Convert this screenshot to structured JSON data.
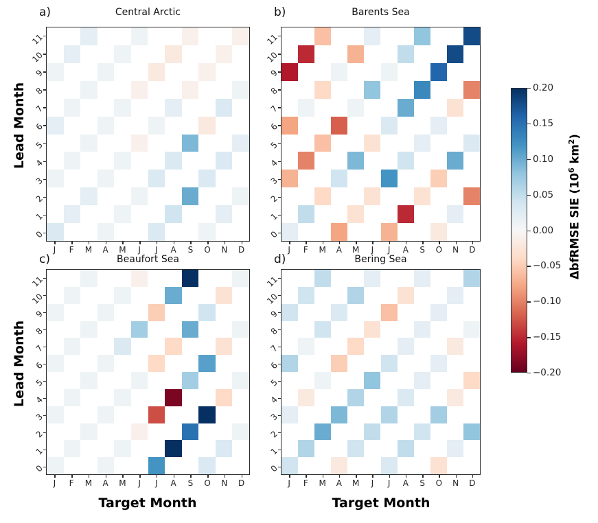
{
  "figure": {
    "xlabel": "Target Month",
    "ylabel": "Lead Month"
  },
  "colorbar": {
    "label_parts": [
      "ΔbfRMSE SIE (10",
      "6",
      " km",
      "2",
      ")"
    ],
    "tick_labels": [
      "0.20",
      "0.15",
      "0.10",
      "0.05",
      "0.00",
      "−0.05",
      "−0.10",
      "−0.15",
      "−0.20"
    ],
    "vmin": -0.2,
    "vmax": 0.2,
    "colormap": "RdBu"
  },
  "chart_data": [
    {
      "type": "heatmap",
      "panel_letter": "a)",
      "title": "Central Arctic",
      "xlabel": "Target Month",
      "ylabel": "Lead Month",
      "x_categories": [
        "J",
        "F",
        "M",
        "A",
        "M",
        "J",
        "J",
        "A",
        "S",
        "O",
        "N",
        "D"
      ],
      "y_categories": [
        "0",
        "1",
        "2",
        "3",
        "4",
        "5",
        "6",
        "7",
        "8",
        "9",
        "10",
        "11"
      ],
      "vmin": -0.2,
      "vmax": 0.2,
      "colormap": "RdBu",
      "values_by_lead": [
        [
          0.03,
          null,
          null,
          0.01,
          null,
          null,
          0.03,
          null,
          null,
          0.01,
          null,
          null
        ],
        [
          null,
          0.02,
          null,
          null,
          0.01,
          null,
          null,
          0.04,
          null,
          null,
          0.02,
          null
        ],
        [
          null,
          null,
          0.02,
          null,
          null,
          0.01,
          null,
          null,
          0.1,
          null,
          null,
          0.01
        ],
        [
          0.01,
          null,
          null,
          0.01,
          null,
          null,
          0.03,
          null,
          null,
          0.03,
          null,
          null
        ],
        [
          null,
          0.01,
          null,
          null,
          0.01,
          null,
          null,
          0.03,
          null,
          null,
          0.03,
          null
        ],
        [
          null,
          null,
          0.01,
          null,
          null,
          -0.01,
          null,
          null,
          0.09,
          null,
          null,
          0.02
        ],
        [
          0.02,
          null,
          null,
          0.01,
          null,
          null,
          0.01,
          null,
          null,
          -0.02,
          null,
          null
        ],
        [
          null,
          0.01,
          null,
          null,
          0.01,
          null,
          null,
          0.02,
          null,
          null,
          0.03,
          null
        ],
        [
          null,
          null,
          0.01,
          null,
          null,
          -0.01,
          null,
          null,
          -0.01,
          null,
          null,
          0.01
        ],
        [
          0.01,
          null,
          null,
          0.01,
          null,
          null,
          -0.02,
          null,
          null,
          -0.01,
          null,
          null
        ],
        [
          null,
          0.02,
          null,
          null,
          0.01,
          null,
          null,
          -0.02,
          null,
          null,
          -0.01,
          null
        ],
        [
          null,
          null,
          0.02,
          null,
          null,
          0.01,
          null,
          null,
          -0.01,
          null,
          null,
          -0.01
        ]
      ]
    },
    {
      "type": "heatmap",
      "panel_letter": "b)",
      "title": "Barents Sea",
      "xlabel": "Target Month",
      "ylabel": "Lead Month",
      "x_categories": [
        "J",
        "F",
        "M",
        "A",
        "M",
        "J",
        "J",
        "A",
        "S",
        "O",
        "N",
        "D"
      ],
      "y_categories": [
        "0",
        "1",
        "2",
        "3",
        "4",
        "5",
        "6",
        "7",
        "8",
        "9",
        "10",
        "11"
      ],
      "vmin": -0.2,
      "vmax": 0.2,
      "colormap": "RdBu",
      "values_by_lead": [
        [
          0.02,
          null,
          null,
          -0.08,
          null,
          null,
          -0.07,
          null,
          null,
          -0.02,
          null,
          null
        ],
        [
          null,
          0.05,
          null,
          null,
          -0.03,
          null,
          null,
          -0.15,
          null,
          null,
          0.02,
          null
        ],
        [
          null,
          null,
          -0.04,
          null,
          null,
          -0.03,
          null,
          null,
          -0.03,
          null,
          null,
          -0.1
        ],
        [
          -0.07,
          null,
          null,
          0.04,
          null,
          null,
          0.12,
          null,
          null,
          -0.05,
          null,
          null
        ],
        [
          null,
          -0.1,
          null,
          null,
          0.09,
          null,
          null,
          0.04,
          null,
          null,
          0.1,
          null
        ],
        [
          null,
          null,
          -0.06,
          null,
          null,
          -0.03,
          null,
          null,
          0.02,
          null,
          null,
          0.03
        ],
        [
          -0.08,
          null,
          null,
          -0.12,
          null,
          null,
          0.03,
          null,
          null,
          0.02,
          null,
          null
        ],
        [
          null,
          0.01,
          null,
          null,
          0.01,
          null,
          null,
          0.1,
          null,
          null,
          -0.03,
          null
        ],
        [
          null,
          null,
          -0.04,
          null,
          null,
          0.08,
          null,
          null,
          0.13,
          null,
          null,
          -0.1
        ],
        [
          -0.16,
          null,
          null,
          0.01,
          null,
          null,
          0.01,
          null,
          null,
          0.16,
          null,
          null
        ],
        [
          null,
          -0.15,
          null,
          null,
          -0.07,
          null,
          null,
          0.05,
          null,
          null,
          0.18,
          null
        ],
        [
          null,
          null,
          -0.06,
          null,
          null,
          0.02,
          null,
          null,
          0.08,
          null,
          null,
          0.18
        ]
      ]
    },
    {
      "type": "heatmap",
      "panel_letter": "c)",
      "title": "Beaufort Sea",
      "xlabel": "Target Month",
      "ylabel": "Lead Month",
      "x_categories": [
        "J",
        "F",
        "M",
        "A",
        "M",
        "J",
        "J",
        "A",
        "S",
        "O",
        "N",
        "D"
      ],
      "y_categories": [
        "0",
        "1",
        "2",
        "3",
        "4",
        "5",
        "6",
        "7",
        "8",
        "9",
        "10",
        "11"
      ],
      "vmin": -0.2,
      "vmax": 0.2,
      "colormap": "RdBu",
      "values_by_lead": [
        [
          0.01,
          null,
          null,
          0.01,
          null,
          null,
          0.12,
          null,
          null,
          0.03,
          null,
          null
        ],
        [
          null,
          0.01,
          null,
          null,
          0.01,
          null,
          null,
          0.2,
          null,
          null,
          0.03,
          null
        ],
        [
          null,
          null,
          0.01,
          null,
          null,
          -0.01,
          null,
          null,
          0.15,
          null,
          null,
          0.01
        ],
        [
          0.01,
          null,
          null,
          0.01,
          null,
          null,
          -0.13,
          null,
          null,
          0.2,
          null,
          null
        ],
        [
          null,
          0.01,
          null,
          null,
          0.01,
          null,
          null,
          -0.19,
          null,
          null,
          -0.04,
          null
        ],
        [
          null,
          null,
          0.01,
          null,
          null,
          0.01,
          null,
          null,
          0.07,
          null,
          null,
          0.01
        ],
        [
          0.01,
          null,
          null,
          0.01,
          null,
          null,
          -0.04,
          null,
          null,
          0.11,
          null,
          null
        ],
        [
          null,
          0.01,
          null,
          null,
          0.03,
          null,
          null,
          -0.04,
          null,
          null,
          -0.03,
          null
        ],
        [
          null,
          null,
          0.01,
          null,
          null,
          0.07,
          null,
          null,
          0.1,
          null,
          null,
          0.01
        ],
        [
          0.01,
          null,
          null,
          0.01,
          null,
          null,
          -0.05,
          null,
          null,
          0.04,
          null,
          null
        ],
        [
          null,
          0.01,
          null,
          null,
          0.01,
          null,
          null,
          0.1,
          null,
          null,
          -0.03,
          null
        ],
        [
          null,
          null,
          0.01,
          null,
          null,
          -0.01,
          null,
          null,
          0.2,
          null,
          null,
          0.01
        ]
      ]
    },
    {
      "type": "heatmap",
      "panel_letter": "d)",
      "title": "Bering Sea",
      "xlabel": "Target Month",
      "ylabel": "Lead Month",
      "x_categories": [
        "J",
        "F",
        "M",
        "A",
        "M",
        "J",
        "J",
        "A",
        "S",
        "O",
        "N",
        "D"
      ],
      "y_categories": [
        "0",
        "1",
        "2",
        "3",
        "4",
        "5",
        "6",
        "7",
        "8",
        "9",
        "10",
        "11"
      ],
      "vmin": -0.2,
      "vmax": 0.2,
      "colormap": "RdBu",
      "values_by_lead": [
        [
          0.04,
          null,
          null,
          -0.02,
          null,
          null,
          0.03,
          null,
          null,
          -0.03,
          null,
          null
        ],
        [
          null,
          0.06,
          null,
          null,
          0.04,
          null,
          null,
          0.05,
          null,
          null,
          0.02,
          null
        ],
        [
          null,
          null,
          0.1,
          null,
          null,
          0.05,
          null,
          null,
          0.04,
          null,
          null,
          0.08
        ],
        [
          0.02,
          null,
          null,
          0.09,
          null,
          null,
          0.06,
          null,
          null,
          0.07,
          null,
          null
        ],
        [
          null,
          -0.02,
          null,
          null,
          0.06,
          null,
          null,
          0.03,
          null,
          null,
          -0.02,
          null
        ],
        [
          null,
          null,
          0.01,
          null,
          null,
          0.08,
          null,
          null,
          0.02,
          null,
          null,
          -0.04
        ],
        [
          0.06,
          null,
          null,
          -0.05,
          null,
          null,
          0.04,
          null,
          null,
          0.02,
          null,
          null
        ],
        [
          null,
          0.01,
          null,
          null,
          -0.04,
          null,
          null,
          0.02,
          null,
          null,
          -0.02,
          null
        ],
        [
          null,
          null,
          0.04,
          null,
          null,
          -0.03,
          null,
          null,
          0.02,
          null,
          null,
          0.01
        ],
        [
          0.04,
          null,
          null,
          0.03,
          null,
          null,
          -0.06,
          null,
          null,
          0.02,
          null,
          null
        ],
        [
          null,
          0.04,
          null,
          null,
          0.06,
          null,
          null,
          -0.03,
          null,
          null,
          0.02,
          null
        ],
        [
          null,
          null,
          0.05,
          null,
          null,
          0.02,
          null,
          null,
          0.02,
          null,
          null,
          0.06
        ]
      ]
    }
  ]
}
